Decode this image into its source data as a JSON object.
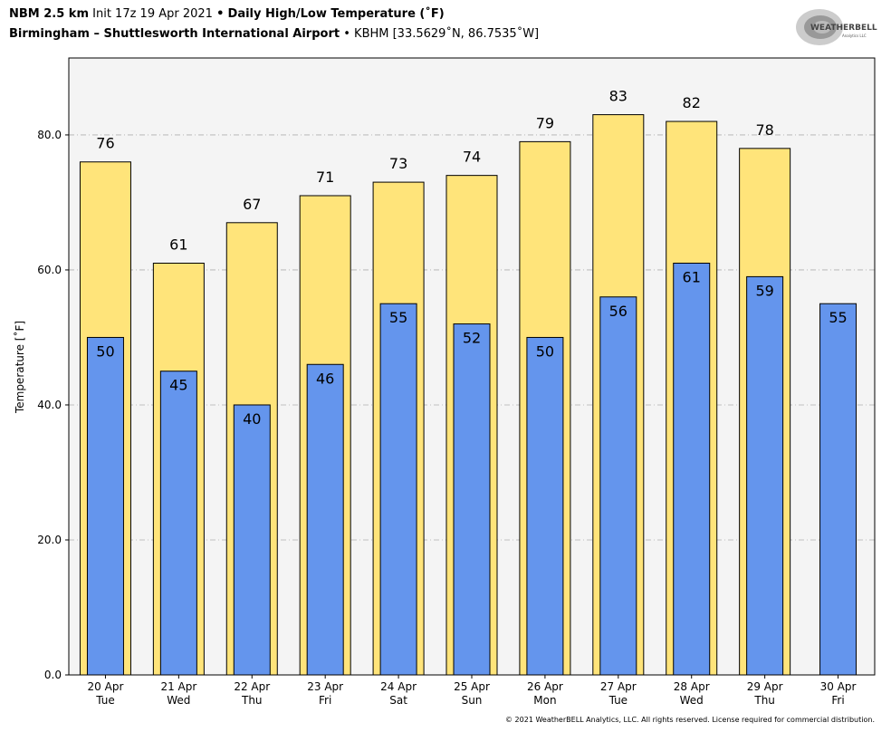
{
  "header": {
    "model": "NBM 2.5 km",
    "init": "Init 17z 19 Apr 2021",
    "bullet": "•",
    "product": "Daily High/Low Temperature (˚F)",
    "station_name": "Birmingham – Shuttlesworth International Airport",
    "station_info": "KBHM [33.5629˚N, 86.7535˚W]"
  },
  "logo": {
    "text": "WeatherBELL",
    "subtext": "Analytics LLC"
  },
  "footer": "© 2021 WeatherBELL Analytics, LLC. All rights reserved. License required for commercial distribution.",
  "colors": {
    "high": "#ffe47a",
    "low": "#6495ed",
    "plot_bg": "#f4f4f4",
    "grid": "#b0b0b0"
  },
  "chart_data": {
    "type": "bar",
    "ylabel": "Temperature [˚F]",
    "ylim": [
      0,
      91.4
    ],
    "yticks": [
      0,
      20,
      40,
      60,
      80
    ],
    "ytick_labels": [
      "0.0",
      "20.0",
      "40.0",
      "60.0",
      "80.0"
    ],
    "grid": "horizontal dashed",
    "categories": [
      [
        "20 Apr",
        "Tue"
      ],
      [
        "21 Apr",
        "Wed"
      ],
      [
        "22 Apr",
        "Thu"
      ],
      [
        "23 Apr",
        "Fri"
      ],
      [
        "24 Apr",
        "Sat"
      ],
      [
        "25 Apr",
        "Sun"
      ],
      [
        "26 Apr",
        "Mon"
      ],
      [
        "27 Apr",
        "Tue"
      ],
      [
        "28 Apr",
        "Wed"
      ],
      [
        "29 Apr",
        "Thu"
      ],
      [
        "30 Apr",
        "Fri"
      ]
    ],
    "series": [
      {
        "name": "High",
        "values": [
          76,
          61,
          67,
          71,
          73,
          74,
          79,
          83,
          82,
          78,
          null
        ]
      },
      {
        "name": "Low",
        "values": [
          50,
          45,
          40,
          46,
          55,
          52,
          50,
          56,
          61,
          59,
          55
        ]
      }
    ]
  }
}
